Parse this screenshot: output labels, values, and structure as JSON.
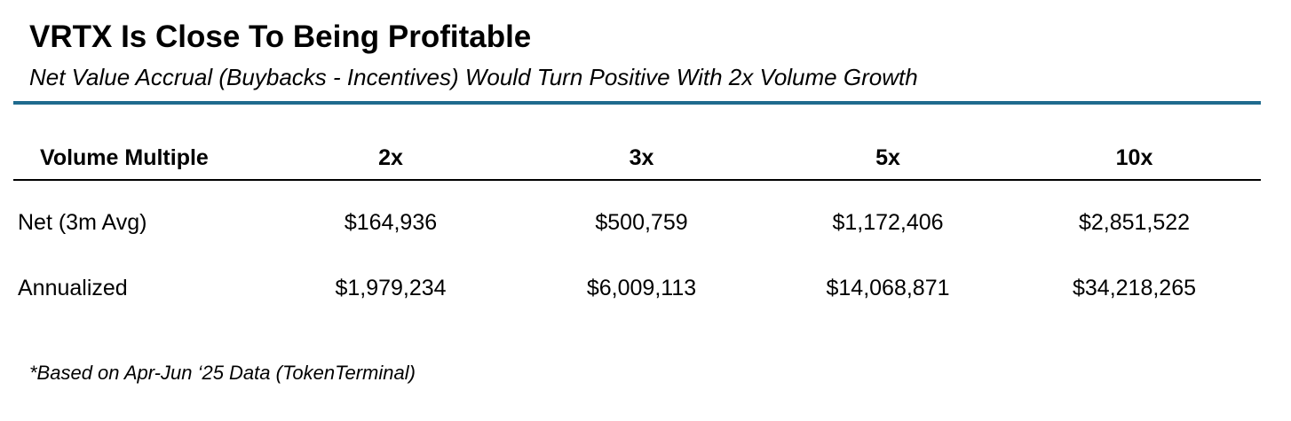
{
  "title": "VRTX Is Close To Being Profitable",
  "subtitle": "Net Value Accrual (Buybacks - Incentives) Would Turn Positive With 2x Volume Growth",
  "accent_color": "#1f6b8e",
  "table": {
    "header": {
      "label": "Volume Multiple",
      "columns": [
        "2x",
        "3x",
        "5x",
        "10x"
      ]
    },
    "rows": [
      {
        "label": "Net (3m Avg)",
        "values": [
          "$164,936",
          "$500,759",
          "$1,172,406",
          "$2,851,522"
        ]
      },
      {
        "label": "Annualized",
        "values": [
          "$1,979,234",
          "$6,009,113",
          "$14,068,871",
          "$34,218,265"
        ]
      }
    ]
  },
  "footnote": "*Based on Apr-Jun ‘25 Data (TokenTerminal)"
}
